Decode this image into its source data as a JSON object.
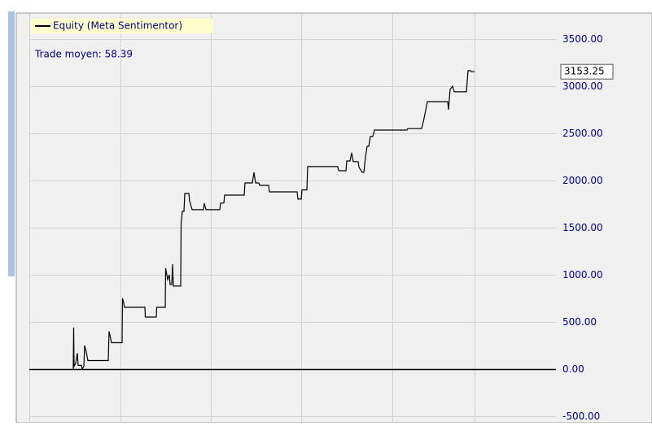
{
  "chart_data": {
    "type": "line",
    "annotation": "Trade moyen: 58.39",
    "series": [
      {
        "name": "Equity (Meta Sentimentor)",
        "color": "#000000",
        "x": [
          90,
          90.5,
          91,
          93,
          95,
          96,
          100,
          101,
          103,
          104,
          106,
          108,
          133,
          134,
          136,
          137,
          150,
          150.5,
          152,
          153,
          178,
          178.5,
          192,
          192.5,
          203,
          203.5,
          206,
          208,
          209,
          211,
          212,
          213,
          222,
          222.5,
          224,
          226,
          227,
          232,
          233,
          236,
          250,
          251,
          253,
          270,
          271,
          275,
          276,
          300,
          301,
          310,
          312,
          314,
          318,
          319,
          330,
          331,
          365,
          366,
          370,
          371,
          377,
          378,
          415,
          416,
          425,
          426,
          430,
          432,
          434,
          440,
          441,
          445,
          447,
          449,
          451,
          453,
          455,
          458,
          460,
          500,
          501,
          518,
          520,
          522,
          525,
          550,
          551,
          553,
          556,
          558,
          573,
          575,
          578,
          579,
          583
        ],
        "values": [
          0,
          440,
          30,
          60,
          170,
          40,
          40,
          0,
          30,
          250,
          180,
          90,
          90,
          400,
          320,
          280,
          280,
          750,
          700,
          655,
          655,
          552,
          552,
          655,
          655,
          1069,
          950,
          1000,
          897,
          897,
          1112,
          880,
          880,
          1543,
          1672,
          1672,
          1862,
          1862,
          1780,
          1690,
          1690,
          1759,
          1690,
          1690,
          1760,
          1760,
          1845,
          1845,
          1974,
          1974,
          2086,
          1974,
          1974,
          1948,
          1948,
          1879,
          1879,
          1802,
          1802,
          1900,
          1900,
          2147,
          2147,
          2103,
          2103,
          2207,
          2207,
          2293,
          2200,
          2200,
          2140,
          2086,
          2086,
          2250,
          2362,
          2362,
          2466,
          2466,
          2534,
          2534,
          2550,
          2550,
          2621,
          2700,
          2836,
          2836,
          2750,
          2966,
          3000,
          2940,
          2940,
          3164,
          3164,
          3153.25,
          3153.25
        ]
      }
    ],
    "xlim": [
      36,
      683
    ],
    "ylim": [
      -569,
      3741
    ],
    "yticks": [
      {
        "value": -500,
        "label": "-500.00"
      },
      {
        "value": 0,
        "label": "0.00"
      },
      {
        "value": 500,
        "label": "500.00"
      },
      {
        "value": 1000,
        "label": "1000.00"
      },
      {
        "value": 1500,
        "label": "1500.00"
      },
      {
        "value": 2000,
        "label": "2000.00"
      },
      {
        "value": 2500,
        "label": "2500.00"
      },
      {
        "value": 3000,
        "label": "3000.00"
      },
      {
        "value": 3500,
        "label": "3500.00"
      }
    ],
    "grid": true
  }
}
